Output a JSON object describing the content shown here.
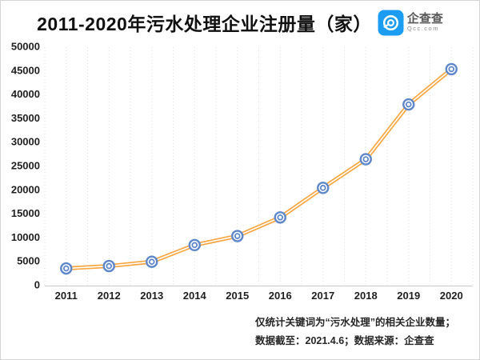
{
  "title": "2011-2020年污水处理企业注册量（家）",
  "logo": {
    "name": "企查查",
    "domain": "Qcc.com",
    "brand_color": "#1c9df1"
  },
  "footer": {
    "line1": "仅统计关键词为“污水处理”的相关企业数量；",
    "line2": "数据截至：2021.4.6；数据来源：企查查"
  },
  "chart_data": {
    "type": "line",
    "title": "2011-2020年污水处理企业注册量（家）",
    "categories": [
      "2011",
      "2012",
      "2013",
      "2014",
      "2015",
      "2016",
      "2017",
      "2018",
      "2019",
      "2020"
    ],
    "values": [
      3600,
      4100,
      5000,
      8500,
      10400,
      14300,
      20500,
      26500,
      38000,
      45400
    ],
    "xlabel": "",
    "ylabel": "",
    "ylim": [
      0,
      50000
    ],
    "ytick_step": 5000,
    "grid": "vertical-dotted-minor-half-step",
    "legend": "none",
    "line_color": "#f6a53f",
    "line_core_color": "#ffffff",
    "marker_color": "#5e87ca",
    "grid_color": "#dedede",
    "axis_color": "#c9c9c9"
  }
}
